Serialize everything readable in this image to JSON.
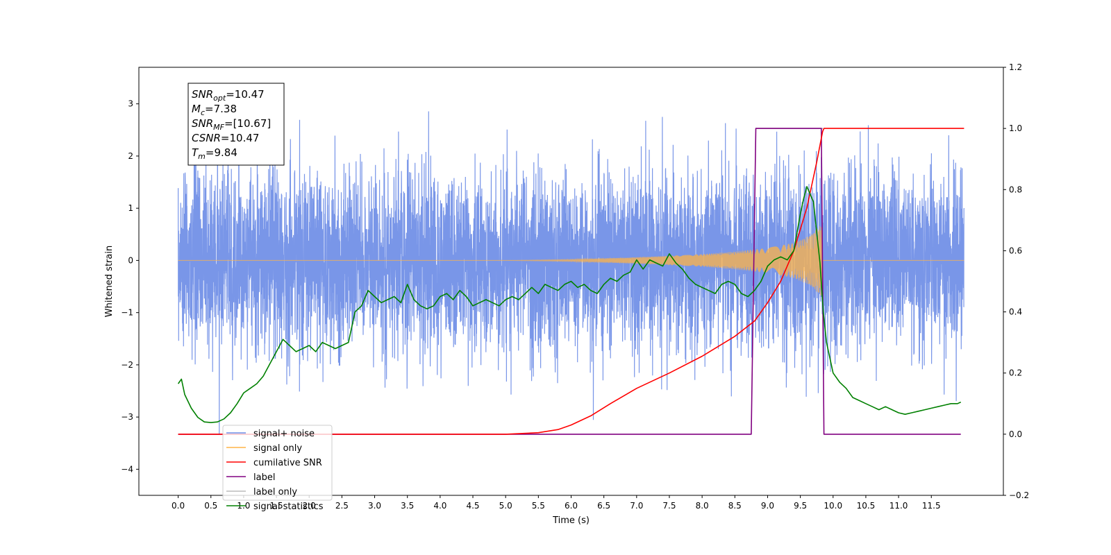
{
  "chart_data": {
    "type": "line",
    "title": "",
    "xlabel": "Time (s)",
    "ylabel": "Whitened strain",
    "y2label": "",
    "xlim": [
      -0.6,
      12.6
    ],
    "ylim": [
      -4.5,
      3.7
    ],
    "y2lim": [
      -0.2,
      1.2
    ],
    "x_ticks": [
      "0.0",
      "0.5",
      "1.0",
      "1.5",
      "2.0",
      "2.5",
      "3.0",
      "3.5",
      "4.0",
      "4.5",
      "5.0",
      "5.5",
      "6.0",
      "6.5",
      "7.0",
      "7.5",
      "8.0",
      "8.5",
      "9.0",
      "9.5",
      "10.0",
      "10.5",
      "11.0",
      "11.5"
    ],
    "y_ticks": [
      "3",
      "2",
      "1",
      "0",
      "−1",
      "−2",
      "−3",
      "−4"
    ],
    "y2_ticks": [
      "1.2",
      "1.0",
      "0.8",
      "0.6",
      "0.4",
      "0.2",
      "0.0",
      "−0.2"
    ],
    "legend_position": "lower-left",
    "grid": false,
    "colors": {
      "signal_noise": "#6a8be6",
      "signal_only": "#ffb347",
      "cumulative_snr": "#ff0000",
      "label": "#800080",
      "signal_statistics": "#008000"
    },
    "annotation": {
      "lines": [
        {
          "symbol": "SNR",
          "sub": "opt",
          "value": "=10.47"
        },
        {
          "symbol": "M",
          "sub": "c",
          "value": "=7.38"
        },
        {
          "symbol": "SNR",
          "sub": "MF",
          "value": "=[10.67]"
        },
        {
          "symbol": "CSNR",
          "sub": "",
          "value": "=10.47"
        },
        {
          "symbol": "T",
          "sub": "m",
          "value": "=9.84"
        }
      ]
    },
    "series": [
      {
        "name": "signal+ noise",
        "axis": "left",
        "noise_sigma": 0.85,
        "x_range": [
          0.0,
          12.0
        ]
      },
      {
        "name": "signal only",
        "axis": "left",
        "envelope": {
          "x": [
            0.0,
            5.0,
            6.0,
            7.0,
            8.0,
            8.5,
            9.0,
            9.4,
            9.6,
            9.75,
            9.84
          ],
          "amplitude": [
            0.0,
            0.0,
            0.02,
            0.06,
            0.12,
            0.17,
            0.24,
            0.34,
            0.45,
            0.6,
            0.72
          ]
        }
      },
      {
        "name": "cumilative SNR",
        "axis": "right",
        "x": [
          0.0,
          5.0,
          5.5,
          5.8,
          6.0,
          6.3,
          6.6,
          7.0,
          7.5,
          8.0,
          8.5,
          8.8,
          9.0,
          9.2,
          9.4,
          9.6,
          9.75,
          9.84,
          9.86,
          12.0
        ],
        "y": [
          0.0,
          0.0,
          0.005,
          0.015,
          0.03,
          0.06,
          0.1,
          0.15,
          0.2,
          0.255,
          0.32,
          0.37,
          0.43,
          0.5,
          0.6,
          0.74,
          0.89,
          0.99,
          1.0,
          1.0
        ]
      },
      {
        "name": "label",
        "axis": "right",
        "x": [
          0.0,
          8.75,
          8.82,
          9.82,
          9.86,
          11.95
        ],
        "y": [
          0.0,
          0.0,
          1.0,
          1.0,
          0.0,
          0.0
        ]
      },
      {
        "name": "label only",
        "axis": "right",
        "x": [
          8.82,
          9.84
        ],
        "y": [
          1.0,
          1.0
        ]
      },
      {
        "name": "signal statistics",
        "axis": "right",
        "x": [
          0.0,
          0.05,
          0.1,
          0.2,
          0.3,
          0.4,
          0.5,
          0.6,
          0.7,
          0.8,
          0.9,
          1.0,
          1.1,
          1.2,
          1.3,
          1.4,
          1.5,
          1.6,
          1.7,
          1.8,
          1.9,
          2.0,
          2.1,
          2.2,
          2.3,
          2.4,
          2.5,
          2.6,
          2.7,
          2.8,
          2.9,
          3.0,
          3.1,
          3.2,
          3.3,
          3.4,
          3.5,
          3.6,
          3.7,
          3.8,
          3.9,
          4.0,
          4.1,
          4.2,
          4.3,
          4.4,
          4.5,
          4.6,
          4.7,
          4.8,
          4.9,
          5.0,
          5.1,
          5.2,
          5.3,
          5.4,
          5.5,
          5.6,
          5.7,
          5.8,
          5.9,
          6.0,
          6.1,
          6.2,
          6.3,
          6.4,
          6.5,
          6.6,
          6.7,
          6.8,
          6.9,
          7.0,
          7.1,
          7.2,
          7.3,
          7.4,
          7.5,
          7.6,
          7.7,
          7.8,
          7.9,
          8.0,
          8.1,
          8.2,
          8.3,
          8.4,
          8.5,
          8.6,
          8.7,
          8.8,
          8.9,
          9.0,
          9.1,
          9.2,
          9.3,
          9.4,
          9.5,
          9.55,
          9.6,
          9.7,
          9.8,
          9.85,
          9.9,
          10.0,
          10.1,
          10.2,
          10.3,
          10.4,
          10.5,
          10.6,
          10.7,
          10.8,
          10.9,
          11.0,
          11.1,
          11.2,
          11.3,
          11.4,
          11.5,
          11.6,
          11.7,
          11.8,
          11.9,
          11.95
        ],
        "y": [
          0.165,
          0.18,
          0.13,
          0.085,
          0.055,
          0.04,
          0.038,
          0.04,
          0.05,
          0.07,
          0.1,
          0.135,
          0.15,
          0.165,
          0.19,
          0.23,
          0.27,
          0.31,
          0.29,
          0.27,
          0.28,
          0.29,
          0.27,
          0.3,
          0.29,
          0.28,
          0.29,
          0.3,
          0.4,
          0.42,
          0.47,
          0.45,
          0.43,
          0.44,
          0.45,
          0.43,
          0.49,
          0.44,
          0.42,
          0.41,
          0.42,
          0.45,
          0.46,
          0.44,
          0.47,
          0.45,
          0.42,
          0.43,
          0.44,
          0.43,
          0.42,
          0.44,
          0.45,
          0.44,
          0.46,
          0.48,
          0.46,
          0.49,
          0.48,
          0.47,
          0.49,
          0.5,
          0.48,
          0.49,
          0.47,
          0.46,
          0.49,
          0.51,
          0.5,
          0.52,
          0.53,
          0.57,
          0.54,
          0.57,
          0.56,
          0.55,
          0.59,
          0.56,
          0.54,
          0.51,
          0.49,
          0.48,
          0.47,
          0.46,
          0.49,
          0.5,
          0.49,
          0.46,
          0.45,
          0.47,
          0.5,
          0.55,
          0.57,
          0.58,
          0.57,
          0.6,
          0.72,
          0.77,
          0.81,
          0.76,
          0.56,
          0.4,
          0.3,
          0.2,
          0.17,
          0.15,
          0.12,
          0.11,
          0.1,
          0.09,
          0.08,
          0.09,
          0.08,
          0.07,
          0.065,
          0.07,
          0.075,
          0.08,
          0.085,
          0.09,
          0.095,
          0.1,
          0.1,
          0.105
        ]
      }
    ]
  }
}
